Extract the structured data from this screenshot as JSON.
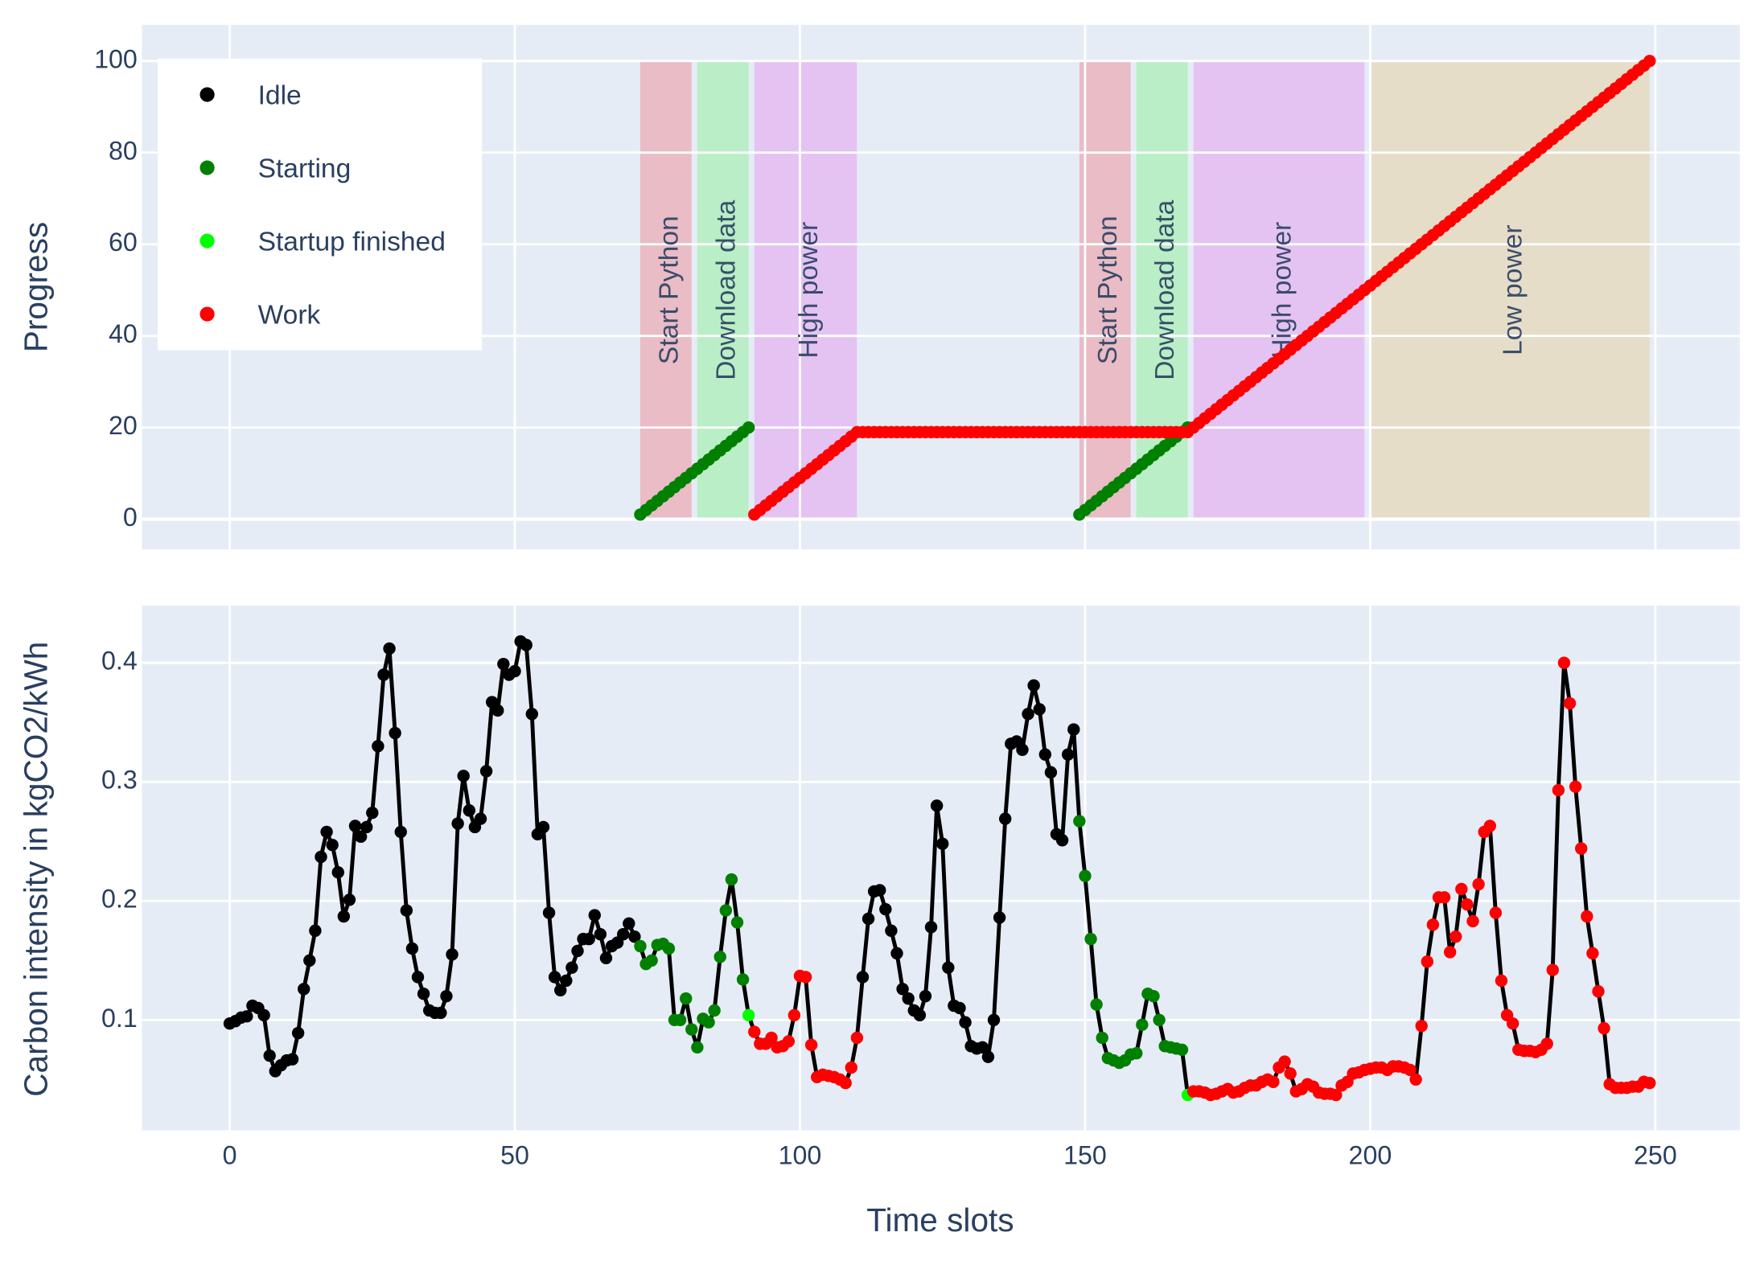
{
  "chart_data": [
    {
      "type": "scatter",
      "ylabel": "Progress",
      "xlim": [
        -15.4,
        264.8
      ],
      "xticks": [
        0,
        50,
        100,
        150,
        200,
        250
      ],
      "ylim": [
        -6.6,
        107.9
      ],
      "yticks": [
        0,
        20,
        40,
        60,
        80,
        100
      ],
      "grid": true,
      "legend": "top-left",
      "regions": [
        {
          "label": "Start Python",
          "from": 72,
          "to": 81,
          "color": "#e9bcc6"
        },
        {
          "label": "Download data",
          "from": 82,
          "to": 91,
          "color": "#b9eec6"
        },
        {
          "label": "High power",
          "from": 92,
          "to": 110,
          "color": "#e4c3f3"
        },
        {
          "label": "Start Python",
          "from": 149,
          "to": 158,
          "color": "#e9bcc6"
        },
        {
          "label": "Download data",
          "from": 159,
          "to": 168,
          "color": "#b9eec6"
        },
        {
          "label": "High power",
          "from": 169,
          "to": 199,
          "color": "#e4c3f3"
        },
        {
          "label": "Low power",
          "from": 200,
          "to": 249,
          "color": "#e6ddc9"
        }
      ],
      "series": [
        {
          "name": "Idle",
          "color": "#000000",
          "x": [],
          "values": []
        },
        {
          "name": "Starting",
          "color": "#008000",
          "x": [
            72,
            73,
            74,
            75,
            76,
            77,
            78,
            79,
            80,
            81,
            82,
            83,
            84,
            85,
            86,
            87,
            88,
            89,
            90,
            91,
            149,
            150,
            151,
            152,
            153,
            154,
            155,
            156,
            157,
            158,
            159,
            160,
            161,
            162,
            163,
            164,
            165,
            166,
            167,
            168
          ],
          "values": [
            1,
            2,
            3,
            4,
            5,
            6,
            7,
            8,
            9,
            10,
            11,
            12,
            13,
            14,
            15,
            16,
            17,
            18,
            19,
            20,
            1,
            2,
            3,
            4,
            5,
            6,
            7,
            8,
            9,
            10,
            11,
            12,
            13,
            14,
            15,
            16,
            17,
            18,
            19,
            20
          ]
        },
        {
          "name": "Startup finished",
          "color": "#00ff00",
          "x": [],
          "values": []
        },
        {
          "name": "Work",
          "color": "#ff0000",
          "x": [
            92,
            93,
            94,
            95,
            96,
            97,
            98,
            99,
            100,
            101,
            102,
            103,
            104,
            105,
            106,
            107,
            108,
            109,
            110,
            111,
            112,
            113,
            114,
            115,
            116,
            117,
            118,
            119,
            120,
            121,
            122,
            123,
            124,
            125,
            126,
            127,
            128,
            129,
            130,
            131,
            132,
            133,
            134,
            135,
            136,
            137,
            138,
            139,
            140,
            141,
            142,
            143,
            144,
            145,
            146,
            147,
            148,
            149,
            150,
            151,
            152,
            153,
            154,
            155,
            156,
            157,
            158,
            159,
            160,
            161,
            162,
            163,
            164,
            165,
            166,
            167,
            168,
            169,
            170,
            171,
            172,
            173,
            174,
            175,
            176,
            177,
            178,
            179,
            180,
            181,
            182,
            183,
            184,
            185,
            186,
            187,
            188,
            189,
            190,
            191,
            192,
            193,
            194,
            195,
            196,
            197,
            198,
            199,
            200,
            201,
            202,
            203,
            204,
            205,
            206,
            207,
            208,
            209,
            210,
            211,
            212,
            213,
            214,
            215,
            216,
            217,
            218,
            219,
            220,
            221,
            222,
            223,
            224,
            225,
            226,
            227,
            228,
            229,
            230,
            231,
            232,
            233,
            234,
            235,
            236,
            237,
            238,
            239,
            240,
            241,
            242,
            243,
            244,
            245,
            246,
            247,
            248,
            249
          ],
          "values": [
            1,
            2,
            3,
            4,
            5,
            6,
            7,
            8,
            9,
            10,
            11,
            12,
            13,
            14,
            15,
            16,
            17,
            18,
            19,
            19,
            19,
            19,
            19,
            19,
            19,
            19,
            19,
            19,
            19,
            19,
            19,
            19,
            19,
            19,
            19,
            19,
            19,
            19,
            19,
            19,
            19,
            19,
            19,
            19,
            19,
            19,
            19,
            19,
            19,
            19,
            19,
            19,
            19,
            19,
            19,
            19,
            19,
            19,
            19,
            19,
            19,
            19,
            19,
            19,
            19,
            19,
            19,
            19,
            19,
            19,
            19,
            19,
            19,
            19,
            19,
            19,
            19,
            20,
            21,
            22,
            23,
            24,
            25,
            26,
            27,
            28,
            29,
            30,
            31,
            32,
            33,
            34,
            35,
            36,
            37,
            38,
            39,
            40,
            41,
            42,
            43,
            44,
            45,
            46,
            47,
            48,
            49,
            50,
            51,
            52,
            53,
            54,
            55,
            56,
            57,
            58,
            59,
            60,
            61,
            62,
            63,
            64,
            65,
            66,
            67,
            68,
            69,
            70,
            71,
            72,
            73,
            74,
            75,
            76,
            77,
            78,
            79,
            80,
            81,
            82,
            83,
            84,
            85,
            86,
            87,
            88,
            89,
            90,
            91,
            92,
            93,
            94,
            95,
            96,
            97,
            98,
            99,
            100
          ]
        }
      ]
    },
    {
      "type": "line",
      "ylabel": "Carbon intensity in kgCO2/kWh",
      "xlabel": "Time slots",
      "xlim": [
        -15.4,
        264.8
      ],
      "xticks": [
        0,
        50,
        100,
        150,
        200,
        250
      ],
      "ylim": [
        0.0073,
        0.448
      ],
      "yticks": [
        0.1,
        0.2,
        0.3,
        0.4
      ],
      "grid": true,
      "series": [
        {
          "color": "#000000",
          "x": [
            0,
            1,
            2,
            3,
            4,
            5,
            6,
            7,
            8,
            9,
            10,
            11,
            12,
            13,
            14,
            15,
            16,
            17,
            18,
            19,
            20,
            21,
            22,
            23,
            24,
            25,
            26,
            27,
            28,
            29,
            30,
            31,
            32,
            33,
            34,
            35,
            36,
            37,
            38,
            39,
            40,
            41,
            42,
            43,
            44,
            45,
            46,
            47,
            48,
            49,
            50,
            51,
            52,
            53,
            54,
            55,
            56,
            57,
            58,
            59,
            60,
            61,
            62,
            63,
            64,
            65,
            66,
            67,
            68,
            69,
            70,
            71,
            111,
            112,
            113,
            114,
            115,
            116,
            117,
            118,
            119,
            120,
            121,
            122,
            123,
            124,
            125,
            126,
            127,
            128,
            129,
            130,
            131,
            132,
            133,
            134,
            135,
            136,
            137,
            138,
            139,
            140,
            141,
            142,
            143,
            144,
            145,
            146,
            147,
            148
          ],
          "values": [
            0.097,
            0.099,
            0.102,
            0.103,
            0.112,
            0.11,
            0.104,
            0.07,
            0.057,
            0.062,
            0.066,
            0.067,
            0.089,
            0.126,
            0.15,
            0.175,
            0.237,
            0.258,
            0.247,
            0.224,
            0.187,
            0.201,
            0.263,
            0.254,
            0.262,
            0.274,
            0.33,
            0.39,
            0.412,
            0.341,
            0.258,
            0.192,
            0.16,
            0.136,
            0.122,
            0.108,
            0.106,
            0.106,
            0.12,
            0.155,
            0.265,
            0.305,
            0.276,
            0.262,
            0.269,
            0.309,
            0.367,
            0.36,
            0.399,
            0.39,
            0.393,
            0.418,
            0.415,
            0.357,
            0.256,
            0.262,
            0.19,
            0.136,
            0.125,
            0.133,
            0.144,
            0.158,
            0.168,
            0.168,
            0.188,
            0.172,
            0.152,
            0.162,
            0.165,
            0.172,
            0.181,
            0.17,
            0.136,
            0.185,
            0.208,
            0.209,
            0.193,
            0.175,
            0.156,
            0.126,
            0.118,
            0.108,
            0.104,
            0.12,
            0.178,
            0.28,
            0.248,
            0.144,
            0.112,
            0.11,
            0.098,
            0.078,
            0.076,
            0.077,
            0.069,
            0.1,
            0.186,
            0.269,
            0.332,
            0.334,
            0.327,
            0.357,
            0.381,
            0.361,
            0.323,
            0.308,
            0.256,
            0.251,
            0.323,
            0.344
          ]
        },
        {
          "color": "#008000",
          "x": [
            72,
            73,
            74,
            75,
            76,
            77,
            78,
            79,
            80,
            81,
            82,
            83,
            84,
            85,
            86,
            87,
            88,
            89,
            90,
            149,
            150,
            151,
            152,
            153,
            154,
            155,
            156,
            157,
            158,
            159,
            160,
            161,
            162,
            163,
            164,
            165,
            166,
            167
          ],
          "values": [
            0.162,
            0.147,
            0.15,
            0.163,
            0.164,
            0.16,
            0.1,
            0.1,
            0.118,
            0.092,
            0.077,
            0.101,
            0.098,
            0.108,
            0.153,
            0.192,
            0.218,
            0.182,
            0.134,
            0.267,
            0.221,
            0.168,
            0.113,
            0.085,
            0.068,
            0.066,
            0.064,
            0.066,
            0.071,
            0.072,
            0.096,
            0.122,
            0.12,
            0.1,
            0.078,
            0.077,
            0.076,
            0.075
          ]
        },
        {
          "color": "#00ff00",
          "x": [
            91,
            168
          ],
          "values": [
            0.104,
            0.037
          ]
        },
        {
          "color": "#ff0000",
          "x": [
            92,
            93,
            94,
            95,
            96,
            97,
            98,
            99,
            100,
            101,
            102,
            103,
            104,
            105,
            106,
            107,
            108,
            109,
            110,
            169,
            170,
            171,
            172,
            173,
            174,
            175,
            176,
            177,
            178,
            179,
            180,
            181,
            182,
            183,
            184,
            185,
            186,
            187,
            188,
            189,
            190,
            191,
            192,
            193,
            194,
            195,
            196,
            197,
            198,
            199,
            200,
            201,
            202,
            203,
            204,
            205,
            206,
            207,
            208,
            209,
            210,
            211,
            212,
            213,
            214,
            215,
            216,
            217,
            218,
            219,
            220,
            221,
            222,
            223,
            224,
            225,
            226,
            227,
            228,
            229,
            230,
            231,
            232,
            233,
            234,
            235,
            236,
            237,
            238,
            239,
            240,
            241,
            242,
            243,
            244,
            245,
            246,
            247,
            248,
            249
          ],
          "values": [
            0.09,
            0.08,
            0.08,
            0.085,
            0.077,
            0.078,
            0.082,
            0.104,
            0.137,
            0.136,
            0.079,
            0.052,
            0.054,
            0.053,
            0.052,
            0.05,
            0.047,
            0.06,
            0.085,
            0.04,
            0.04,
            0.039,
            0.037,
            0.038,
            0.04,
            0.042,
            0.039,
            0.04,
            0.043,
            0.045,
            0.045,
            0.048,
            0.05,
            0.048,
            0.06,
            0.065,
            0.055,
            0.04,
            0.042,
            0.046,
            0.044,
            0.039,
            0.038,
            0.038,
            0.037,
            0.045,
            0.048,
            0.055,
            0.056,
            0.058,
            0.059,
            0.06,
            0.06,
            0.058,
            0.061,
            0.061,
            0.06,
            0.058,
            0.05,
            0.095,
            0.149,
            0.18,
            0.203,
            0.203,
            0.157,
            0.17,
            0.21,
            0.197,
            0.183,
            0.214,
            0.258,
            0.263,
            0.19,
            0.133,
            0.104,
            0.097,
            0.075,
            0.074,
            0.074,
            0.073,
            0.075,
            0.08,
            0.142,
            0.293,
            0.4,
            0.366,
            0.296,
            0.244,
            0.187,
            0.156,
            0.124,
            0.093,
            0.046,
            0.043,
            0.043,
            0.043,
            0.044,
            0.044,
            0.048,
            0.047
          ]
        }
      ]
    }
  ]
}
